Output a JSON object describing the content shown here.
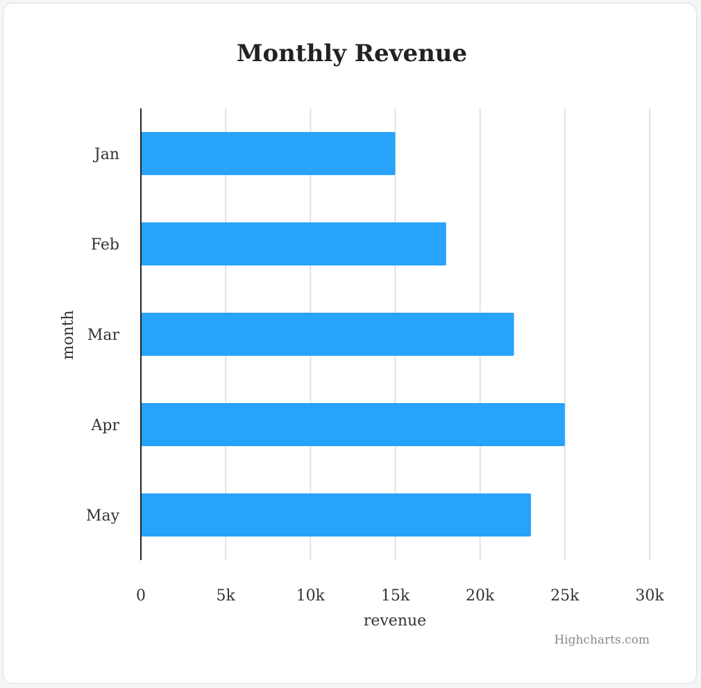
{
  "chart_data": {
    "type": "bar",
    "orientation": "horizontal",
    "title": "Monthly Revenue",
    "categories": [
      "Jan",
      "Feb",
      "Mar",
      "Apr",
      "May"
    ],
    "values": [
      15000,
      18000,
      22000,
      25000,
      23000
    ],
    "xlabel": "revenue",
    "ylabel": "month",
    "xlim": [
      0,
      30000
    ],
    "ticks": [
      0,
      5000,
      10000,
      15000,
      20000,
      25000,
      30000
    ],
    "tick_labels": [
      "0",
      "5k",
      "10k",
      "15k",
      "20k",
      "25k",
      "30k"
    ],
    "grid": true,
    "bar_color": "#27a3fc",
    "credits": "Highcharts.com"
  }
}
